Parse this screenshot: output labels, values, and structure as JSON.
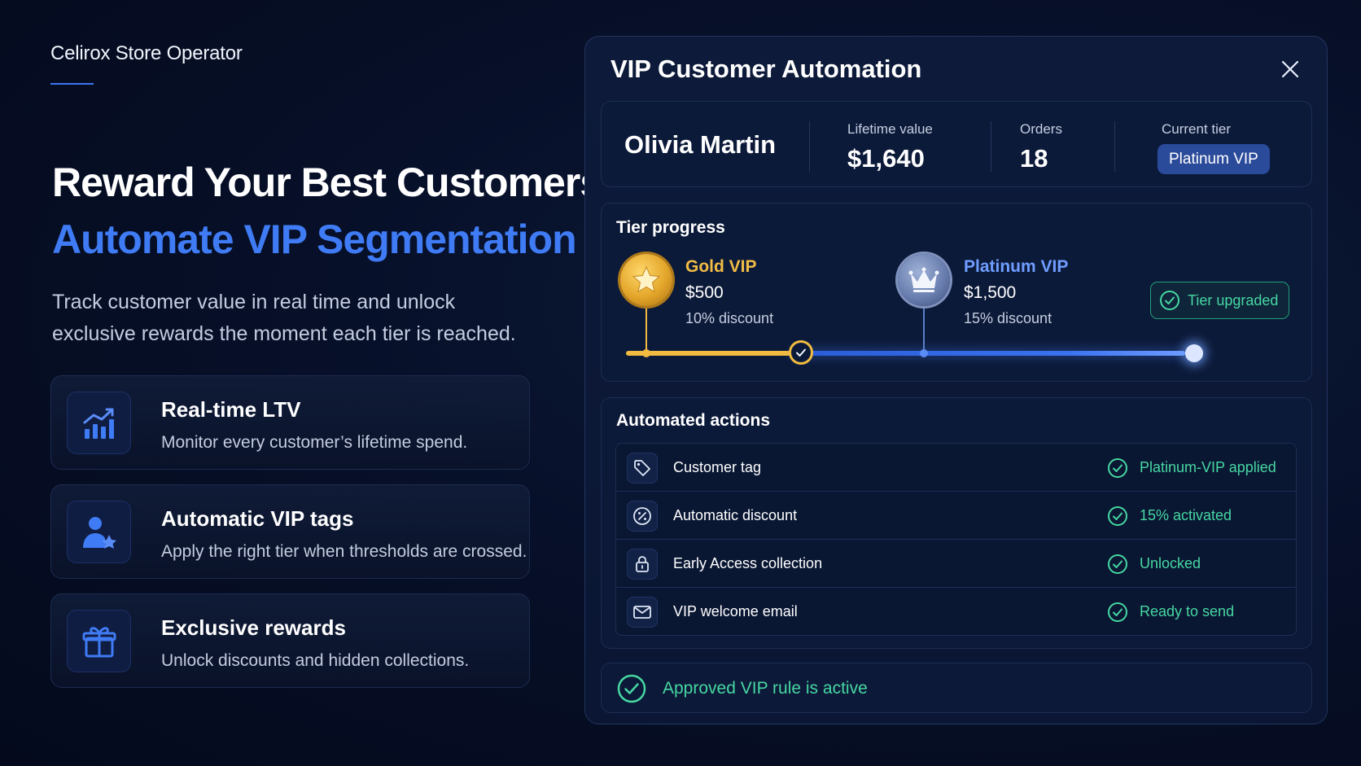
{
  "brand": "Celirox Store Operator",
  "hero": {
    "title": "Reward Your Best Customers",
    "accent": "Automate VIP Segmentation",
    "description": "Track customer value in real time and unlock exclusive rewards the moment each tier is reached."
  },
  "features": [
    {
      "title": "Real-time LTV",
      "description": "Monitor every customer’s lifetime spend.",
      "icon": "bar-chart-icon"
    },
    {
      "title": "Automatic VIP tags",
      "description": "Apply the right tier when thresholds are crossed.",
      "icon": "user-star-icon"
    },
    {
      "title": "Exclusive rewards",
      "description": "Unlock discounts and hidden collections.",
      "icon": "gift-icon"
    }
  ],
  "panel": {
    "title": "VIP Customer Automation",
    "customer": {
      "name": "Olivia Martin",
      "ltv_label": "Lifetime value",
      "ltv_value": "$1,640",
      "orders_label": "Orders",
      "orders_value": "18",
      "tier_label": "Current tier",
      "tier_value": "Platinum VIP"
    },
    "progress": {
      "label": "Tier progress",
      "tiers": [
        {
          "name": "Gold VIP",
          "amount": "$500",
          "discount": "10% discount",
          "color": "#f2bc45"
        },
        {
          "name": "Platinum VIP",
          "amount": "$1,500",
          "discount": "15% discount",
          "color": "#6f9dff"
        }
      ],
      "status": "Tier upgraded"
    },
    "actions": {
      "label": "Automated actions",
      "items": [
        {
          "name": "Customer tag",
          "status": "Platinum-VIP applied",
          "icon": "tag-icon"
        },
        {
          "name": "Automatic discount",
          "status": "15% activated",
          "icon": "percent-icon"
        },
        {
          "name": "Early Access collection",
          "status": "Unlocked",
          "icon": "lock-icon"
        },
        {
          "name": "VIP welcome email",
          "status": "Ready to send",
          "icon": "mail-icon"
        }
      ]
    },
    "rule_status": "Approved VIP rule is active"
  },
  "colors": {
    "accent": "#3f7bf4",
    "gold": "#f0bb40",
    "success": "#46d7a2"
  }
}
